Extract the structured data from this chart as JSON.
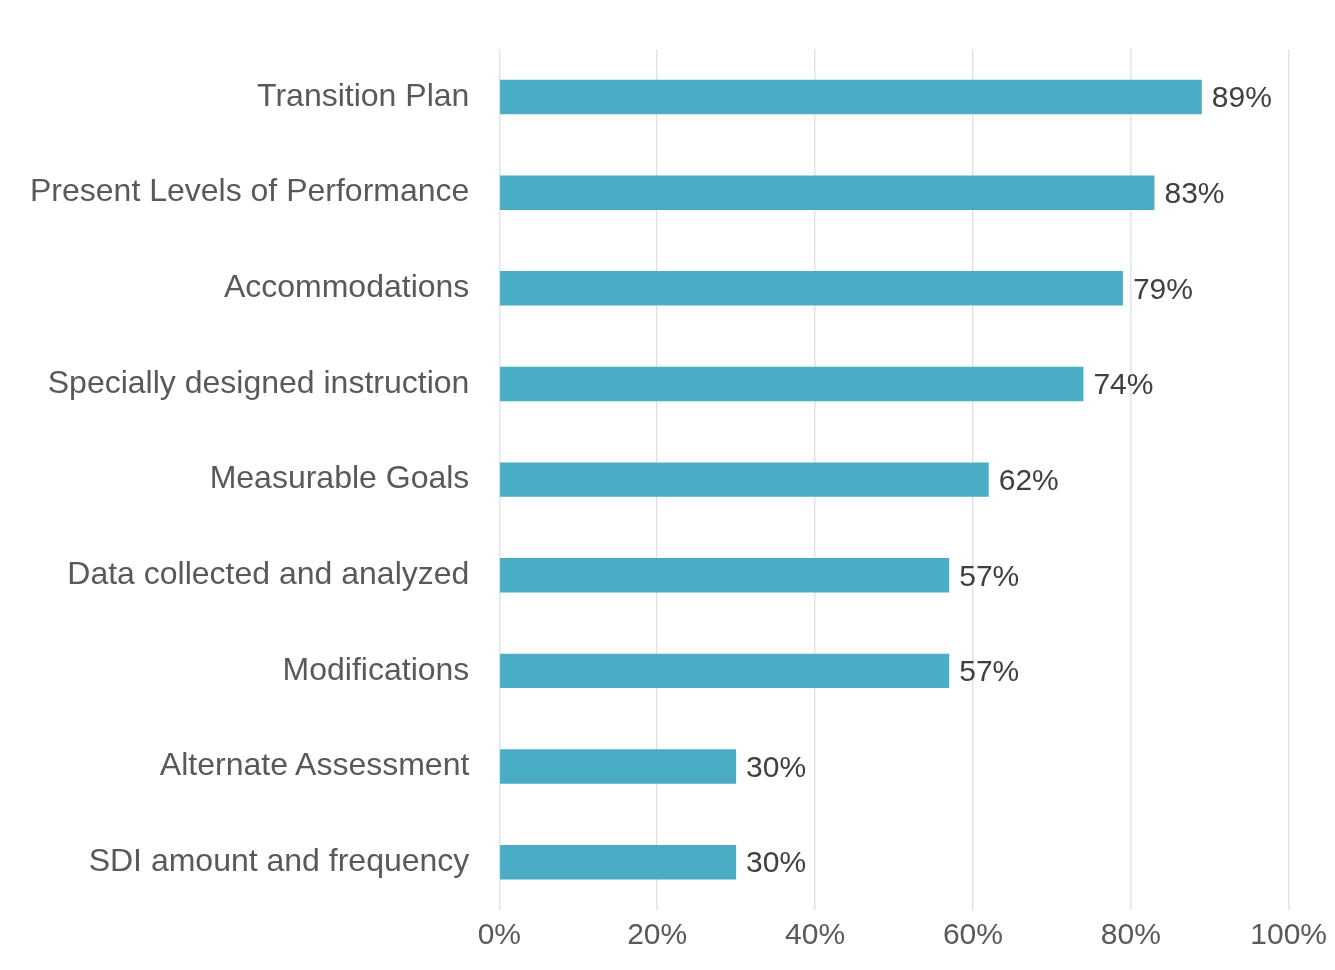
{
  "chart_data": {
    "type": "bar",
    "orientation": "horizontal",
    "categories": [
      "Transition Plan",
      "Present Levels of Performance",
      "Accommodations",
      "Specially designed instruction",
      "Measurable Goals",
      "Data collected and analyzed",
      "Modifications",
      "Alternate Assessment",
      "SDI amount and frequency"
    ],
    "values": [
      89,
      83,
      79,
      74,
      62,
      57,
      57,
      30,
      30
    ],
    "value_labels": [
      "89%",
      "83%",
      "79%",
      "74%",
      "62%",
      "57%",
      "57%",
      "30%",
      "30%"
    ],
    "color": "#4bacc6",
    "xlim": [
      0,
      100
    ],
    "xticks": [
      {
        "value": 0,
        "label": "0%"
      },
      {
        "value": 20,
        "label": "20%"
      },
      {
        "value": 40,
        "label": "40%"
      },
      {
        "value": 60,
        "label": "60%"
      },
      {
        "value": 80,
        "label": "80%"
      },
      {
        "value": 100,
        "label": "100%"
      }
    ],
    "grid": "x",
    "legend": false
  }
}
